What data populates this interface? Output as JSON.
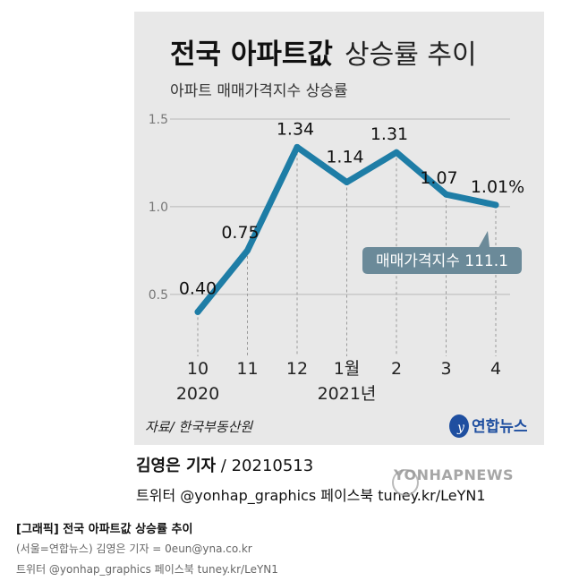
{
  "chart_data": {
    "type": "line",
    "title_bold": "전국 아파트값",
    "title_light": "상승률 추이",
    "subtitle": "아파트 매매가격지수 상승률",
    "categories": [
      "10",
      "11",
      "12",
      "1월",
      "2",
      "3",
      "4"
    ],
    "year_labels": [
      {
        "category_index": 0,
        "text": "2020"
      },
      {
        "category_index": 3,
        "text": "2021년"
      }
    ],
    "series": [
      {
        "values": [
          0.4,
          0.75,
          1.34,
          1.14,
          1.31,
          1.07,
          1.01
        ]
      }
    ],
    "data_labels": [
      "0.40",
      "0.75",
      "1.34",
      "1.14",
      "1.31",
      "1.07",
      "1.01%"
    ],
    "ylim": [
      0.3,
      1.5
    ],
    "yticks": [
      "1.5",
      "1.0",
      "0.5"
    ],
    "ytick_values": [
      1.5,
      1.0,
      0.5
    ],
    "annotation": "매매가격지수 111.1",
    "source": "자료/ 한국부동산원",
    "line_color": "#1e7da6",
    "annotation_color": "#6b8a99",
    "background": "#e8e8e8"
  },
  "logo_text": "연합뉴스",
  "byline": {
    "name": "김영은 기자",
    "date": " / 20210513"
  },
  "social": "트위터 @yonhap_graphics  페이스북 tuney.kr/LeYN1",
  "watermark": "YONHAPNEWS",
  "caption": {
    "title": "[그래픽] 전국 아파트값 상승률 추이",
    "line2": "(서울=연합뉴스) 김영은 기자 = 0eun@yna.co.kr",
    "line3": "트위터 @yonhap_graphics 페이스북 tuney.kr/LeYN1"
  }
}
